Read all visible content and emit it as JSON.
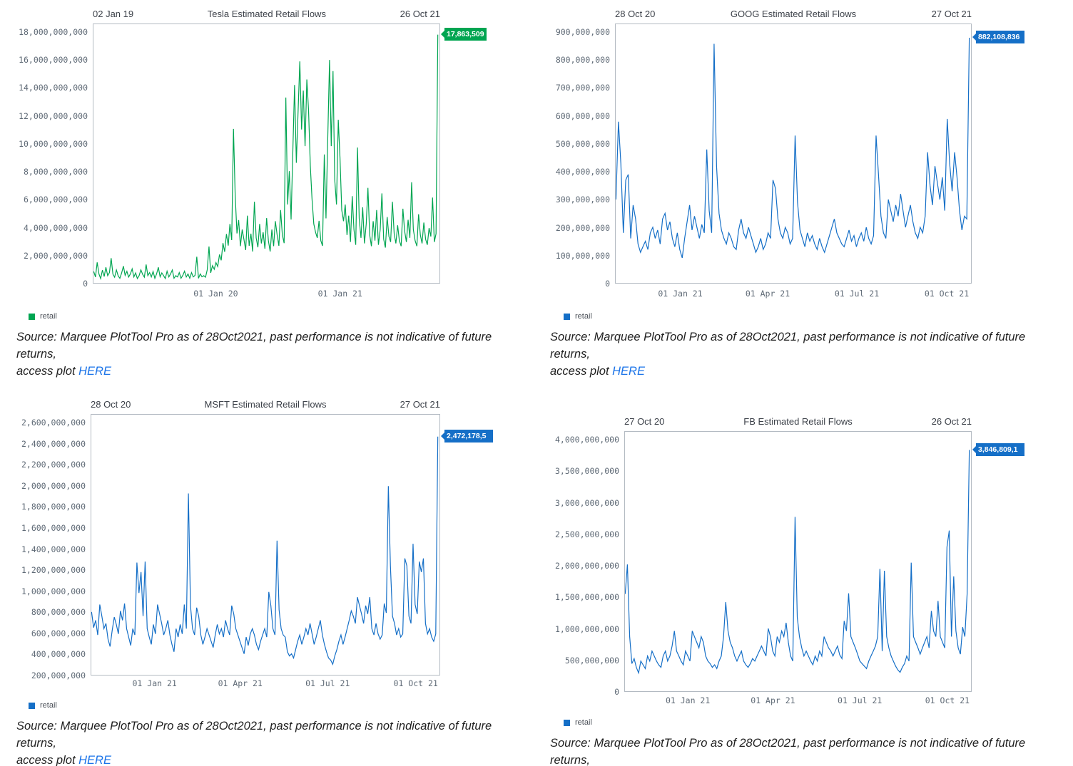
{
  "source": {
    "line1": "Source: Marquee PlotTool Pro as of 28Oct2021, past performance is not indicative of future returns,",
    "line2": "access plot ",
    "link": "HERE",
    "link_color": "#1a73e8"
  },
  "chart_data": [
    {
      "type": "line",
      "title": "Tesla Estimated Retail Flows",
      "date_start": "02 Jan 19",
      "date_end": "26 Oct 21",
      "end_label": "17,863,509",
      "legend": "retail",
      "color": "#00a551",
      "grid": false,
      "legend_position": "bottom-left",
      "y_unit_multiplier": 1000000,
      "ylim_millions": [
        0,
        18000
      ],
      "yticks": [
        "18,000,000,000",
        "16,000,000,000",
        "14,000,000,000",
        "12,000,000,000",
        "10,000,000,000",
        "8,000,000,000",
        "6,000,000,000",
        "4,000,000,000",
        "2,000,000,000",
        "0"
      ],
      "xticks": [
        {
          "label": "01 Jan 20",
          "f": 0.354
        },
        {
          "label": "01 Jan 21",
          "f": 0.712
        }
      ],
      "values_millions": [
        820,
        420,
        1480,
        640,
        310,
        920,
        460,
        1120,
        520,
        740,
        1780,
        620,
        410,
        930,
        510,
        330,
        720,
        1210,
        540,
        830,
        420,
        640,
        1010,
        430,
        720,
        310,
        520,
        940,
        620,
        410,
        1320,
        520,
        740,
        430,
        820,
        330,
        640,
        1120,
        440,
        720,
        520,
        310,
        840,
        430,
        640,
        930,
        330,
        520,
        430,
        740,
        330,
        540,
        840,
        430,
        640,
        330,
        740,
        430,
        540,
        1880,
        330,
        640,
        440,
        520,
        410,
        940,
        2620,
        720,
        1240,
        980,
        1460,
        1180,
        2040,
        1620,
        2860,
        2240,
        3520,
        2680,
        4240,
        3080,
        11080,
        6340,
        3560,
        4520,
        2640,
        3840,
        3140,
        2360,
        4840,
        2660,
        3540,
        2260,
        5840,
        3240,
        2560,
        4240,
        2840,
        3640,
        2460,
        4660,
        3040,
        2260,
        3840,
        2640,
        4440,
        3460,
        2660,
        5240,
        3440,
        2860,
        13340,
        5640,
        8040,
        4560,
        9540,
        14240,
        8640,
        12240,
        15940,
        11040,
        13840,
        9840,
        14640,
        12440,
        8440,
        6040,
        4240,
        3640,
        3240,
        4460,
        3040,
        2660,
        9240,
        4640,
        10440,
        16040,
        9840,
        15240,
        7440,
        5640,
        11740,
        9040,
        5240,
        4440,
        5640,
        3440,
        4840,
        2940,
        6240,
        3840,
        2740,
        9740,
        4640,
        3240,
        5440,
        2840,
        4240,
        6840,
        3440,
        2640,
        4440,
        3040,
        5240,
        2740,
        3840,
        6440,
        3140,
        2540,
        4740,
        3340,
        2940,
        5840,
        3540,
        2840,
        4140,
        3040,
        2640,
        5340,
        3740,
        2940,
        4540,
        3240,
        7240,
        3840,
        3040,
        2640,
        4940,
        3440,
        2840,
        4340,
        3140,
        2740,
        3940,
        3340,
        6140,
        2940,
        3540,
        17864
      ]
    },
    {
      "type": "line",
      "title": "GOOG Estimated Retail Flows",
      "date_start": "28 Oct 20",
      "date_end": "27 Oct 21",
      "end_label": "882,108,836",
      "legend": "retail",
      "color": "#156fc7",
      "grid": false,
      "legend_position": "bottom-left",
      "y_unit_multiplier": 1000000,
      "ylim_millions": [
        0,
        900
      ],
      "yticks": [
        "900,000,000",
        "800,000,000",
        "700,000,000",
        "600,000,000",
        "500,000,000",
        "400,000,000",
        "300,000,000",
        "200,000,000",
        "100,000,000",
        "0"
      ],
      "xticks": [
        {
          "label": "01 Jan 21",
          "f": 0.183
        },
        {
          "label": "01 Apr 21",
          "f": 0.428
        },
        {
          "label": "01 Jul 21",
          "f": 0.678
        },
        {
          "label": "01 Oct 21",
          "f": 0.93
        }
      ],
      "values_millions": [
        300,
        580,
        430,
        180,
        370,
        390,
        160,
        280,
        230,
        140,
        110,
        130,
        150,
        120,
        180,
        200,
        160,
        190,
        140,
        230,
        250,
        190,
        220,
        160,
        130,
        180,
        120,
        90,
        160,
        220,
        280,
        190,
        240,
        200,
        160,
        210,
        180,
        480,
        260,
        180,
        860,
        420,
        250,
        190,
        160,
        140,
        180,
        160,
        130,
        120,
        190,
        230,
        180,
        160,
        200,
        170,
        140,
        110,
        130,
        160,
        120,
        140,
        180,
        160,
        370,
        340,
        230,
        180,
        160,
        200,
        180,
        140,
        160,
        530,
        290,
        190,
        160,
        130,
        180,
        150,
        170,
        140,
        120,
        160,
        130,
        110,
        140,
        170,
        200,
        230,
        180,
        160,
        140,
        130,
        160,
        190,
        150,
        170,
        130,
        160,
        180,
        150,
        200,
        160,
        140,
        170,
        530,
        390,
        240,
        180,
        160,
        300,
        260,
        220,
        280,
        240,
        320,
        260,
        200,
        240,
        280,
        220,
        180,
        160,
        200,
        180,
        240,
        470,
        350,
        280,
        420,
        360,
        300,
        380,
        260,
        590,
        430,
        330,
        470,
        380,
        260,
        190,
        240,
        230,
        882
      ]
    },
    {
      "type": "line",
      "title": "MSFT Estimated Retail Flows",
      "date_start": "28 Oct 20",
      "date_end": "27 Oct 21",
      "end_label": "2,472,178,5",
      "legend": "retail",
      "color": "#156fc7",
      "grid": false,
      "legend_position": "bottom-left",
      "y_unit_multiplier": 1000000,
      "ylim_millions": [
        200,
        2600
      ],
      "yticks": [
        "2,600,000,000",
        "2,400,000,000",
        "2,200,000,000",
        "2,000,000,000",
        "1,800,000,000",
        "1,600,000,000",
        "1,400,000,000",
        "1,200,000,000",
        "1,000,000,000",
        "800,000,000",
        "600,000,000",
        "400,000,000",
        "200,000,000"
      ],
      "xticks": [
        {
          "label": "01 Jan 21",
          "f": 0.183
        },
        {
          "label": "01 Apr 21",
          "f": 0.428
        },
        {
          "label": "01 Jul 21",
          "f": 0.678
        },
        {
          "label": "01 Oct 21",
          "f": 0.93
        }
      ],
      "values_millions": [
        800,
        650,
        720,
        580,
        870,
        760,
        640,
        690,
        540,
        470,
        620,
        750,
        680,
        590,
        810,
        720,
        880,
        640,
        560,
        480,
        640,
        580,
        1270,
        980,
        1180,
        760,
        1280,
        640,
        560,
        490,
        680,
        590,
        870,
        780,
        690,
        580,
        640,
        720,
        580,
        490,
        420,
        640,
        560,
        680,
        590,
        870,
        640,
        1930,
        860,
        640,
        580,
        840,
        760,
        580,
        490,
        560,
        640,
        580,
        520,
        460,
        580,
        680,
        590,
        640,
        560,
        720,
        640,
        580,
        860,
        780,
        640,
        580,
        520,
        460,
        400,
        560,
        480,
        590,
        640,
        580,
        490,
        440,
        520,
        580,
        640,
        560,
        990,
        860,
        640,
        580,
        1480,
        820,
        640,
        580,
        560,
        420,
        380,
        400,
        360,
        440,
        520,
        580,
        490,
        560,
        640,
        580,
        690,
        590,
        490,
        560,
        640,
        720,
        580,
        490,
        420,
        360,
        340,
        300,
        380,
        440,
        520,
        580,
        490,
        560,
        640,
        720,
        810,
        760,
        690,
        940,
        860,
        780,
        690,
        860,
        780,
        940,
        640,
        580,
        690,
        590,
        540,
        580,
        880,
        790,
        2000,
        1240,
        760,
        690,
        580,
        640,
        560,
        590,
        1310,
        1240,
        760,
        690,
        1450,
        870,
        780,
        1280,
        1180,
        1310,
        690,
        590,
        640,
        560,
        520,
        590,
        2472
      ]
    },
    {
      "type": "line",
      "title": "FB Estimated Retail Flows",
      "date_start": "27 Oct 20",
      "date_end": "26 Oct 21",
      "end_label": "3,846,809,1",
      "legend": "retail",
      "color": "#156fc7",
      "grid": false,
      "legend_position": "bottom-left",
      "y_unit_multiplier": 1000000,
      "ylim_millions": [
        0,
        4000
      ],
      "yticks": [
        "4,000,000,000",
        "3,500,000,000",
        "3,000,000,000",
        "2,500,000,000",
        "2,000,000,000",
        "1,500,000,000",
        "1,000,000,000",
        "500,000,000",
        "0"
      ],
      "xticks": [
        {
          "label": "01 Jan 21",
          "f": 0.183
        },
        {
          "label": "01 Apr 21",
          "f": 0.428
        },
        {
          "label": "01 Jul 21",
          "f": 0.678
        },
        {
          "label": "01 Oct 21",
          "f": 0.93
        }
      ],
      "values_millions": [
        1550,
        2020,
        870,
        440,
        520,
        380,
        290,
        480,
        420,
        360,
        560,
        480,
        640,
        560,
        480,
        420,
        380,
        560,
        640,
        480,
        560,
        720,
        960,
        640,
        560,
        480,
        420,
        640,
        560,
        480,
        960,
        870,
        780,
        690,
        870,
        780,
        560,
        480,
        440,
        380,
        420,
        360,
        480,
        560,
        870,
        1420,
        960,
        780,
        690,
        560,
        480,
        560,
        640,
        480,
        420,
        380,
        440,
        520,
        480,
        560,
        640,
        720,
        640,
        560,
        1000,
        870,
        640,
        560,
        870,
        780,
        960,
        870,
        1090,
        780,
        560,
        480,
        2780,
        1180,
        870,
        690,
        560,
        640,
        560,
        480,
        420,
        560,
        480,
        640,
        560,
        870,
        780,
        690,
        640,
        560,
        640,
        720,
        580,
        520,
        1120,
        960,
        1560,
        870,
        780,
        690,
        590,
        480,
        440,
        400,
        360,
        480,
        560,
        640,
        720,
        870,
        1950,
        640,
        1920,
        870,
        690,
        560,
        480,
        400,
        340,
        300,
        380,
        440,
        560,
        480,
        2050,
        870,
        780,
        690,
        590,
        690,
        780,
        870,
        690,
        1280,
        960,
        870,
        1440,
        870,
        780,
        690,
        2300,
        2560,
        870,
        1830,
        960,
        690,
        590,
        1020,
        870,
        1550,
        3846
      ]
    }
  ]
}
